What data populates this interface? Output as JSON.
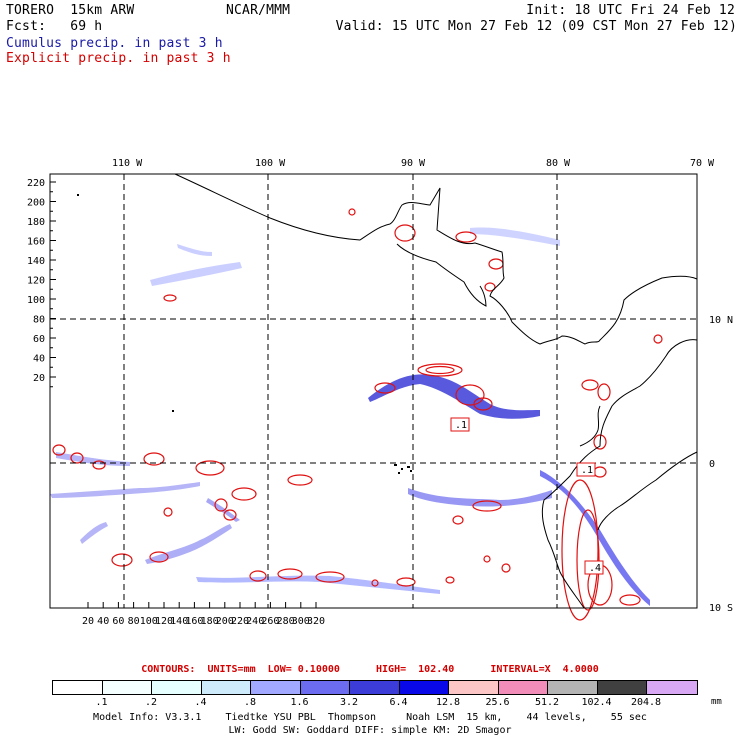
{
  "header": {
    "model": "TORERO  15km ARW",
    "center": "NCAR/MMM",
    "init": "Init: 18 UTC Fri 24 Feb 12",
    "fcst": "Fcst:   69 h",
    "valid": "Valid: 15 UTC Mon 27 Feb 12 (09 CST Mon 27 Feb 12)",
    "field1": "Cumulus precip. in past 3 h",
    "field2": "Explicit precip. in past 3 h",
    "field1_color": "#1a1aa6",
    "field2_color": "#d40000"
  },
  "map": {
    "top_axis_labels": [
      "110 W",
      "100 W",
      "90 W",
      "80 W",
      "70 W"
    ],
    "right_axis_labels": [
      "10 N",
      "0",
      "10 S"
    ],
    "left_axis_ticks": [
      "220",
      "200",
      "180",
      "160",
      "140",
      "120",
      "100",
      "80",
      "60",
      "40",
      "20"
    ],
    "bottom_axis_ticks": [
      "20",
      "40",
      "60",
      "80",
      "100",
      "120",
      "140",
      "160",
      "180",
      "200",
      "220",
      "240",
      "260",
      "280",
      "300",
      "320"
    ],
    "contour_boxes": [
      ".1",
      ".1",
      ".1",
      ".4"
    ]
  },
  "contours_line": "CONTOURS:  UNITS=mm  LOW= 0.10000      HIGH=  102.40      INTERVAL=X  4.0000",
  "colorbar": {
    "colors": [
      "#ffffff",
      "#f4ffff",
      "#e6ffff",
      "#cdebfb",
      "#a0a8ff",
      "#6c6cf0",
      "#3c3cd8",
      "#0808e8",
      "#fcc6c6",
      "#f28cb8",
      "#b4b4b4",
      "#404040",
      "#d8a8f4"
    ],
    "labels": [
      ".1",
      ".2",
      ".4",
      ".8",
      "1.6",
      "3.2",
      "6.4",
      "12.8",
      "25.6",
      "51.2",
      "102.4",
      "204.8"
    ],
    "unit": "mm"
  },
  "footer": {
    "line1": "Model Info: V3.3.1    Tiedtke YSU PBL  Thompson     Noah LSM  15 km,    44 levels,    55 sec",
    "line2": "LW: Godd SW: Goddard DIFF: simple KM: 2D Smagor"
  }
}
